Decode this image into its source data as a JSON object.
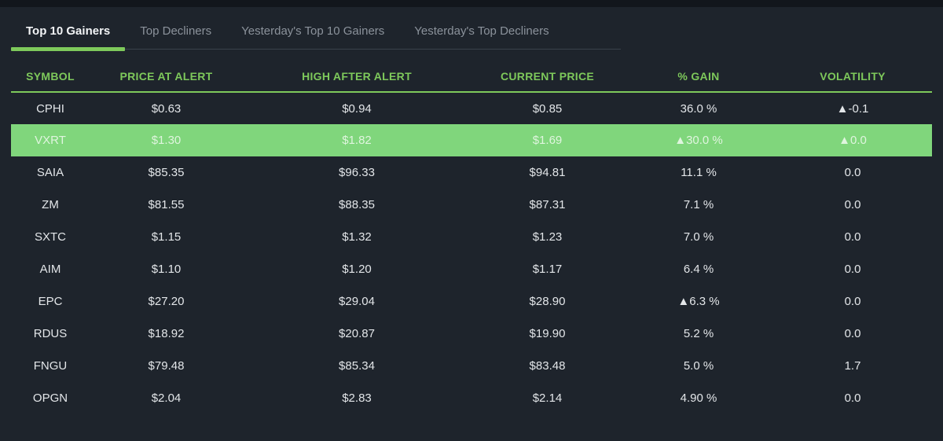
{
  "colors": {
    "outer_bg": "#12161c",
    "panel_bg": "#1e242c",
    "accent_green": "#7ec95b",
    "highlight_row_green": "#80d67c",
    "inactive_tab_text": "#8b929b",
    "cell_text": "#e3e6e9"
  },
  "tabs": [
    {
      "label": "Top 10 Gainers",
      "active": true
    },
    {
      "label": "Top Decliners",
      "active": false
    },
    {
      "label": "Yesterday's Top 10 Gainers",
      "active": false
    },
    {
      "label": "Yesterday's Top Decliners",
      "active": false
    }
  ],
  "table": {
    "columns": [
      "SYMBOL",
      "PRICE AT ALERT",
      "HIGH AFTER ALERT",
      "CURRENT PRICE",
      "% GAIN",
      "VOLATILITY"
    ],
    "rows": [
      {
        "symbol": "CPHI",
        "price_at_alert": "$0.63",
        "high_after_alert": "$0.94",
        "current_price": "$0.85",
        "gain": "36.0 %",
        "volatility": "▲-0.1",
        "highlighted": false
      },
      {
        "symbol": "VXRT",
        "price_at_alert": "$1.30",
        "high_after_alert": "$1.82",
        "current_price": "$1.69",
        "gain": "▲30.0 %",
        "volatility": "▲0.0",
        "highlighted": true
      },
      {
        "symbol": "SAIA",
        "price_at_alert": "$85.35",
        "high_after_alert": "$96.33",
        "current_price": "$94.81",
        "gain": "11.1 %",
        "volatility": "0.0",
        "highlighted": false
      },
      {
        "symbol": "ZM",
        "price_at_alert": "$81.55",
        "high_after_alert": "$88.35",
        "current_price": "$87.31",
        "gain": "7.1 %",
        "volatility": "0.0",
        "highlighted": false
      },
      {
        "symbol": "SXTC",
        "price_at_alert": "$1.15",
        "high_after_alert": "$1.32",
        "current_price": "$1.23",
        "gain": "7.0 %",
        "volatility": "0.0",
        "highlighted": false
      },
      {
        "symbol": "AIM",
        "price_at_alert": "$1.10",
        "high_after_alert": "$1.20",
        "current_price": "$1.17",
        "gain": "6.4 %",
        "volatility": "0.0",
        "highlighted": false
      },
      {
        "symbol": "EPC",
        "price_at_alert": "$27.20",
        "high_after_alert": "$29.04",
        "current_price": "$28.90",
        "gain": "▲6.3 %",
        "volatility": "0.0",
        "highlighted": false
      },
      {
        "symbol": "RDUS",
        "price_at_alert": "$18.92",
        "high_after_alert": "$20.87",
        "current_price": "$19.90",
        "gain": "5.2 %",
        "volatility": "0.0",
        "highlighted": false
      },
      {
        "symbol": "FNGU",
        "price_at_alert": "$79.48",
        "high_after_alert": "$85.34",
        "current_price": "$83.48",
        "gain": "5.0 %",
        "volatility": "1.7",
        "highlighted": false
      },
      {
        "symbol": "OPGN",
        "price_at_alert": "$2.04",
        "high_after_alert": "$2.83",
        "current_price": "$2.14",
        "gain": "4.90 %",
        "volatility": "0.0",
        "highlighted": false
      }
    ]
  }
}
